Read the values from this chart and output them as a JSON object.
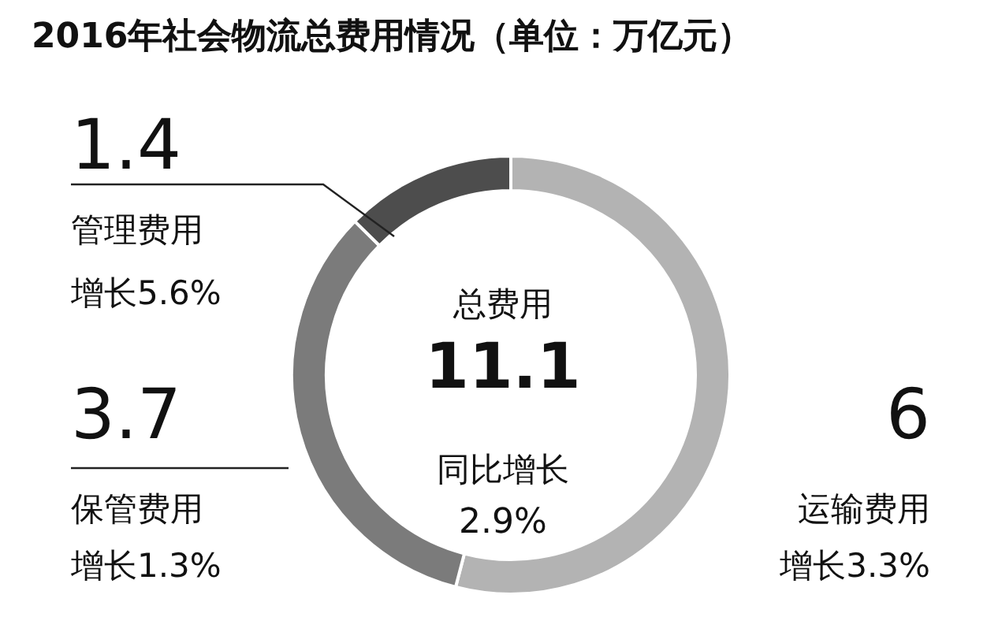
{
  "chart_data": {
    "type": "donut",
    "title": "2016年社会物流总费用情况（单位：万亿元）",
    "categories": [
      "运输费用",
      "保管费用",
      "管理费用"
    ],
    "values": [
      6,
      3.7,
      1.4
    ],
    "colors": [
      "#b3b3b3",
      "#7b7b7b",
      "#4d4d4d"
    ],
    "data_labels": true,
    "annotations": [
      "总费用",
      "11.1",
      "同比增长",
      "2.9%",
      "增长3.3%",
      "增长1.3%",
      "增长5.6%"
    ]
  }
}
